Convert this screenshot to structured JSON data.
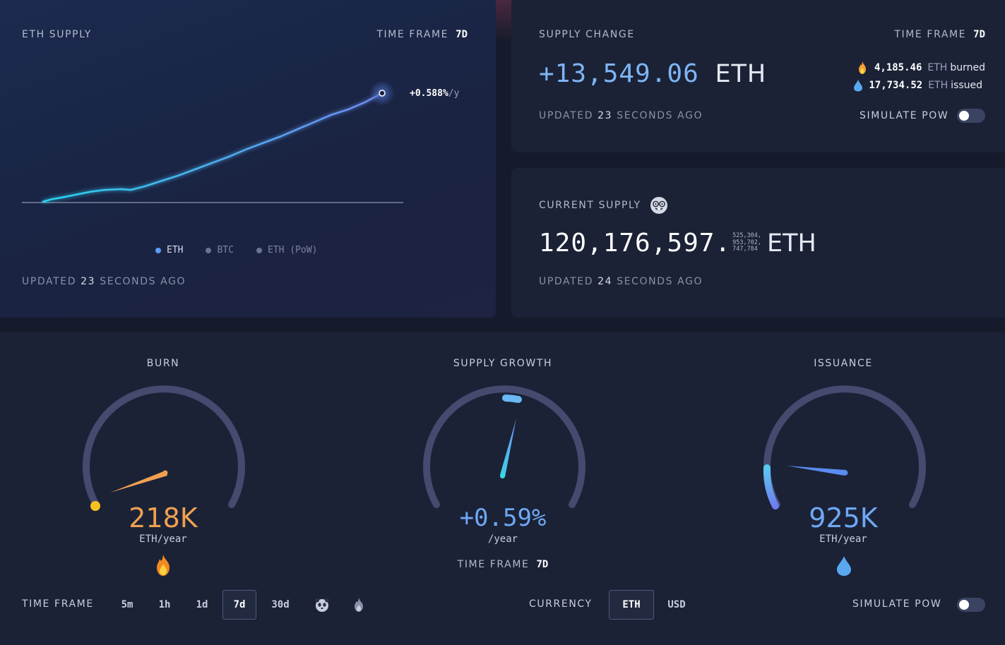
{
  "supply_panel": {
    "title": "ETH SUPPLY",
    "time_frame_label": "TIME FRAME",
    "time_frame_value": "7d",
    "rate_label": "+0.588%",
    "rate_unit": "/y",
    "legend": [
      {
        "label": "ETH",
        "color": "#5b9cf5",
        "active": true
      },
      {
        "label": "BTC",
        "color": "#6b7390",
        "active": false
      },
      {
        "label": "ETH (PoW)",
        "color": "#6b7390",
        "active": false
      }
    ],
    "updated_prefix": "UPDATED",
    "updated_num": "23",
    "updated_suffix": "SECONDS AGO"
  },
  "chart_data": {
    "type": "line",
    "title": "ETH SUPPLY",
    "xlabel": "",
    "ylabel": "",
    "series": [
      {
        "name": "ETH",
        "x": [
          0,
          3,
          6,
          10,
          14,
          18,
          23,
          26,
          30,
          35,
          40,
          45,
          50,
          55,
          60,
          65,
          70,
          75,
          80,
          85,
          90,
          95,
          100
        ],
        "values": [
          0,
          1.5,
          2.5,
          4,
          5.5,
          6.5,
          7.0,
          6.6,
          8.5,
          11.5,
          14.5,
          18,
          21.5,
          25,
          29,
          32.5,
          36,
          40,
          44,
          48,
          51,
          55,
          60
        ]
      }
    ],
    "grid": false,
    "legend_position": "bottom"
  },
  "change_panel": {
    "title": "SUPPLY CHANGE",
    "time_frame_label": "TIME FRAME",
    "time_frame_value": "7d",
    "change_value": "+13,549.06",
    "change_unit": "ETH",
    "burned_value": "4,185.46",
    "burned_unit": "ETH",
    "burned_word": "burned",
    "issued_value": "17,734.52",
    "issued_unit": "ETH",
    "issued_word": "issued",
    "updated_prefix": "UPDATED",
    "updated_num": "23",
    "updated_suffix": "SECONDS AGO",
    "simulate_label": "SIMULATE PoW",
    "simulate_on": false
  },
  "current_panel": {
    "title": "CURRENT SUPPLY",
    "whole": "120,176,597.",
    "decimals_line1": "525,304,",
    "decimals_line2": "953,702,",
    "decimals_line3": "747,784",
    "unit": "ETH",
    "updated_prefix": "UPDATED",
    "updated_num": "24",
    "updated_suffix": "SECONDS AGO"
  },
  "gauges": {
    "burn": {
      "title": "BURN",
      "value": "218K",
      "unit": "ETH/year",
      "color": "#f0a050",
      "level": 0.18
    },
    "growth": {
      "title": "SUPPLY GROWTH",
      "value": "+0.59%",
      "unit": "/year",
      "time_frame_label": "TIME FRAME",
      "time_frame_value": "7d",
      "color": "#6fa8f5",
      "level": 0.55
    },
    "issuance": {
      "title": "ISSUANCE",
      "value": "925K",
      "unit": "ETH/year",
      "color": "#6fa8f5",
      "level": 0.1
    }
  },
  "controls": {
    "time_frame_label": "TIME FRAME",
    "time_frames": [
      "5m",
      "1h",
      "1d",
      "7d",
      "30d"
    ],
    "active_time_frame": "7d",
    "currency_label": "CURRENCY",
    "currencies": [
      "ETH",
      "USD"
    ],
    "active_currency": "ETH",
    "simulate_label": "SIMULATE PoW",
    "simulate_on": false
  }
}
